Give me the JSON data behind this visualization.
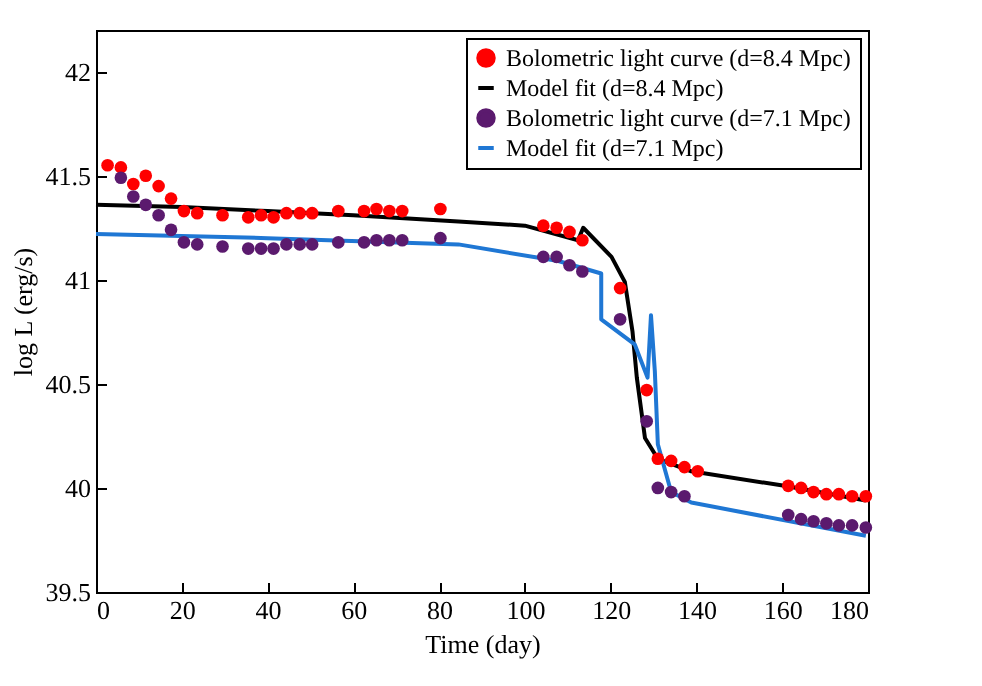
{
  "chart_data": {
    "type": "scatter",
    "xlabel": "Time (day)",
    "ylabel": "log L (erg/s)",
    "xlim": [
      0,
      180
    ],
    "xticks": [
      0,
      20,
      40,
      60,
      80,
      100,
      120,
      140,
      160,
      180
    ],
    "ylim": [
      39.5,
      42.2
    ],
    "yticks": [
      39.5,
      40,
      40.5,
      41,
      41.5,
      42
    ],
    "grid": false,
    "legend": "top right",
    "marker": "circle",
    "series": [
      {
        "name": "Bolometric light curve (d=8.4 Mpc)",
        "color": "#ff0000",
        "x": [
          2.7,
          5.8,
          8.7,
          11.6,
          14.6,
          17.5,
          20.5,
          23.6,
          29.5,
          35.5,
          38.5,
          41.4,
          44.4,
          47.5,
          50.4,
          56.5,
          62.5,
          65.4,
          68.4,
          71.4,
          80.3,
          104.3,
          107.4,
          110.4,
          113.4,
          122.2,
          128.4,
          131,
          134.1,
          137.2,
          140.3,
          161.4,
          164.4,
          167.3,
          170.3,
          173.2,
          176.3,
          179.5
        ],
        "values": [
          41.55,
          41.54,
          41.46,
          41.5,
          41.45,
          41.39,
          41.33,
          41.32,
          41.31,
          41.3,
          41.31,
          41.3,
          41.32,
          41.32,
          41.32,
          41.33,
          41.33,
          41.34,
          41.33,
          41.33,
          41.34,
          41.26,
          41.25,
          41.23,
          41.19,
          40.96,
          40.47,
          40.14,
          40.13,
          40.1,
          40.08,
          40.01,
          40,
          39.98,
          39.97,
          39.97,
          39.96,
          39.96
        ]
      },
      {
        "name": "Model fit (d=8.4 Mpc)",
        "type": "line",
        "marker": "none",
        "color": "#000000",
        "x": [
          0,
          20,
          40,
          60,
          84.5,
          100,
          112.4,
          113.6,
          120.2,
          123.3,
          125.1,
          126.1,
          128,
          131,
          138.8,
          160.5,
          179.5
        ],
        "values": [
          41.36,
          41.35,
          41.33,
          41.31,
          41.28,
          41.26,
          41.19,
          41.25,
          41.11,
          40.99,
          40.75,
          40.53,
          40.24,
          40.14,
          40.08,
          40.01,
          39.94
        ]
      },
      {
        "name": "Bolometric light curve (d=7.1 Mpc)",
        "color": "#5b1a6e",
        "x": [
          5.8,
          8.7,
          11.6,
          14.6,
          17.5,
          20.5,
          23.6,
          29.5,
          35.5,
          38.5,
          41.4,
          44.4,
          47.5,
          50.4,
          56.5,
          62.5,
          65.4,
          68.4,
          71.4,
          80.3,
          104.3,
          107.4,
          110.4,
          113.4,
          122.2,
          128.4,
          131,
          134.1,
          137.2,
          161.4,
          164.4,
          167.3,
          170.3,
          173.2,
          176.3,
          179.5
        ],
        "values": [
          41.49,
          41.4,
          41.36,
          41.31,
          41.24,
          41.18,
          41.17,
          41.16,
          41.15,
          41.15,
          41.15,
          41.17,
          41.17,
          41.17,
          41.18,
          41.18,
          41.19,
          41.19,
          41.19,
          41.2,
          41.11,
          41.11,
          41.07,
          41.04,
          40.81,
          40.32,
          40,
          39.98,
          39.96,
          39.87,
          39.85,
          39.84,
          39.83,
          39.82,
          39.82,
          39.81
        ]
      },
      {
        "name": "Model fit (d=7.1 Mpc)",
        "type": "line",
        "marker": "none",
        "color": "#1f77d4",
        "x": [
          0,
          40,
          84.5,
          107.8,
          117.8,
          117.8,
          125.6,
          128.6,
          129.4,
          130.3,
          131,
          134.1,
          138.8,
          179.5
        ],
        "values": [
          41.22,
          41.2,
          41.17,
          41.09,
          41.03,
          40.81,
          40.69,
          40.53,
          40.83,
          40.56,
          40.21,
          39.98,
          39.93,
          39.77
        ]
      }
    ]
  }
}
